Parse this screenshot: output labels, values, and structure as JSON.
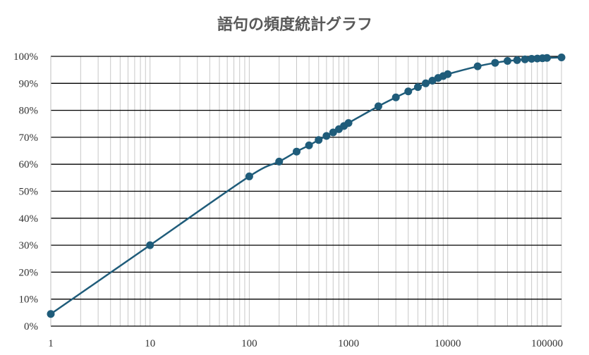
{
  "chart_data": {
    "type": "line",
    "title": "語句の頻度統計グラフ",
    "x_scale": "log",
    "xlim": [
      1,
      140000
    ],
    "ylim": [
      0,
      100
    ],
    "x_tick_labels": [
      "1",
      "10",
      "100",
      "1000",
      "10000",
      "100000"
    ],
    "y_tick_labels": [
      "0%",
      "10%",
      "20%",
      "30%",
      "40%",
      "50%",
      "60%",
      "70%",
      "80%",
      "90%",
      "100%"
    ],
    "grid": true,
    "line_color": "#1f5c7a",
    "series": [
      {
        "x": [
          1,
          10,
          100,
          200,
          300,
          400,
          500,
          600,
          700,
          800,
          900,
          1000,
          2000,
          3000,
          4000,
          5000,
          6000,
          7000,
          8000,
          9000,
          10000,
          20000,
          30000,
          40000,
          50000,
          60000,
          70000,
          80000,
          90000,
          100000,
          140000
        ],
        "y": [
          4.5,
          30,
          55.5,
          61,
          64.7,
          67,
          69,
          70.5,
          71.8,
          73,
          74.2,
          75.3,
          81.5,
          84.8,
          87,
          88.6,
          90,
          91,
          92,
          92.7,
          93.4,
          96.3,
          97.6,
          98.3,
          98.6,
          98.9,
          99.1,
          99.2,
          99.3,
          99.4,
          99.6
        ]
      }
    ]
  }
}
